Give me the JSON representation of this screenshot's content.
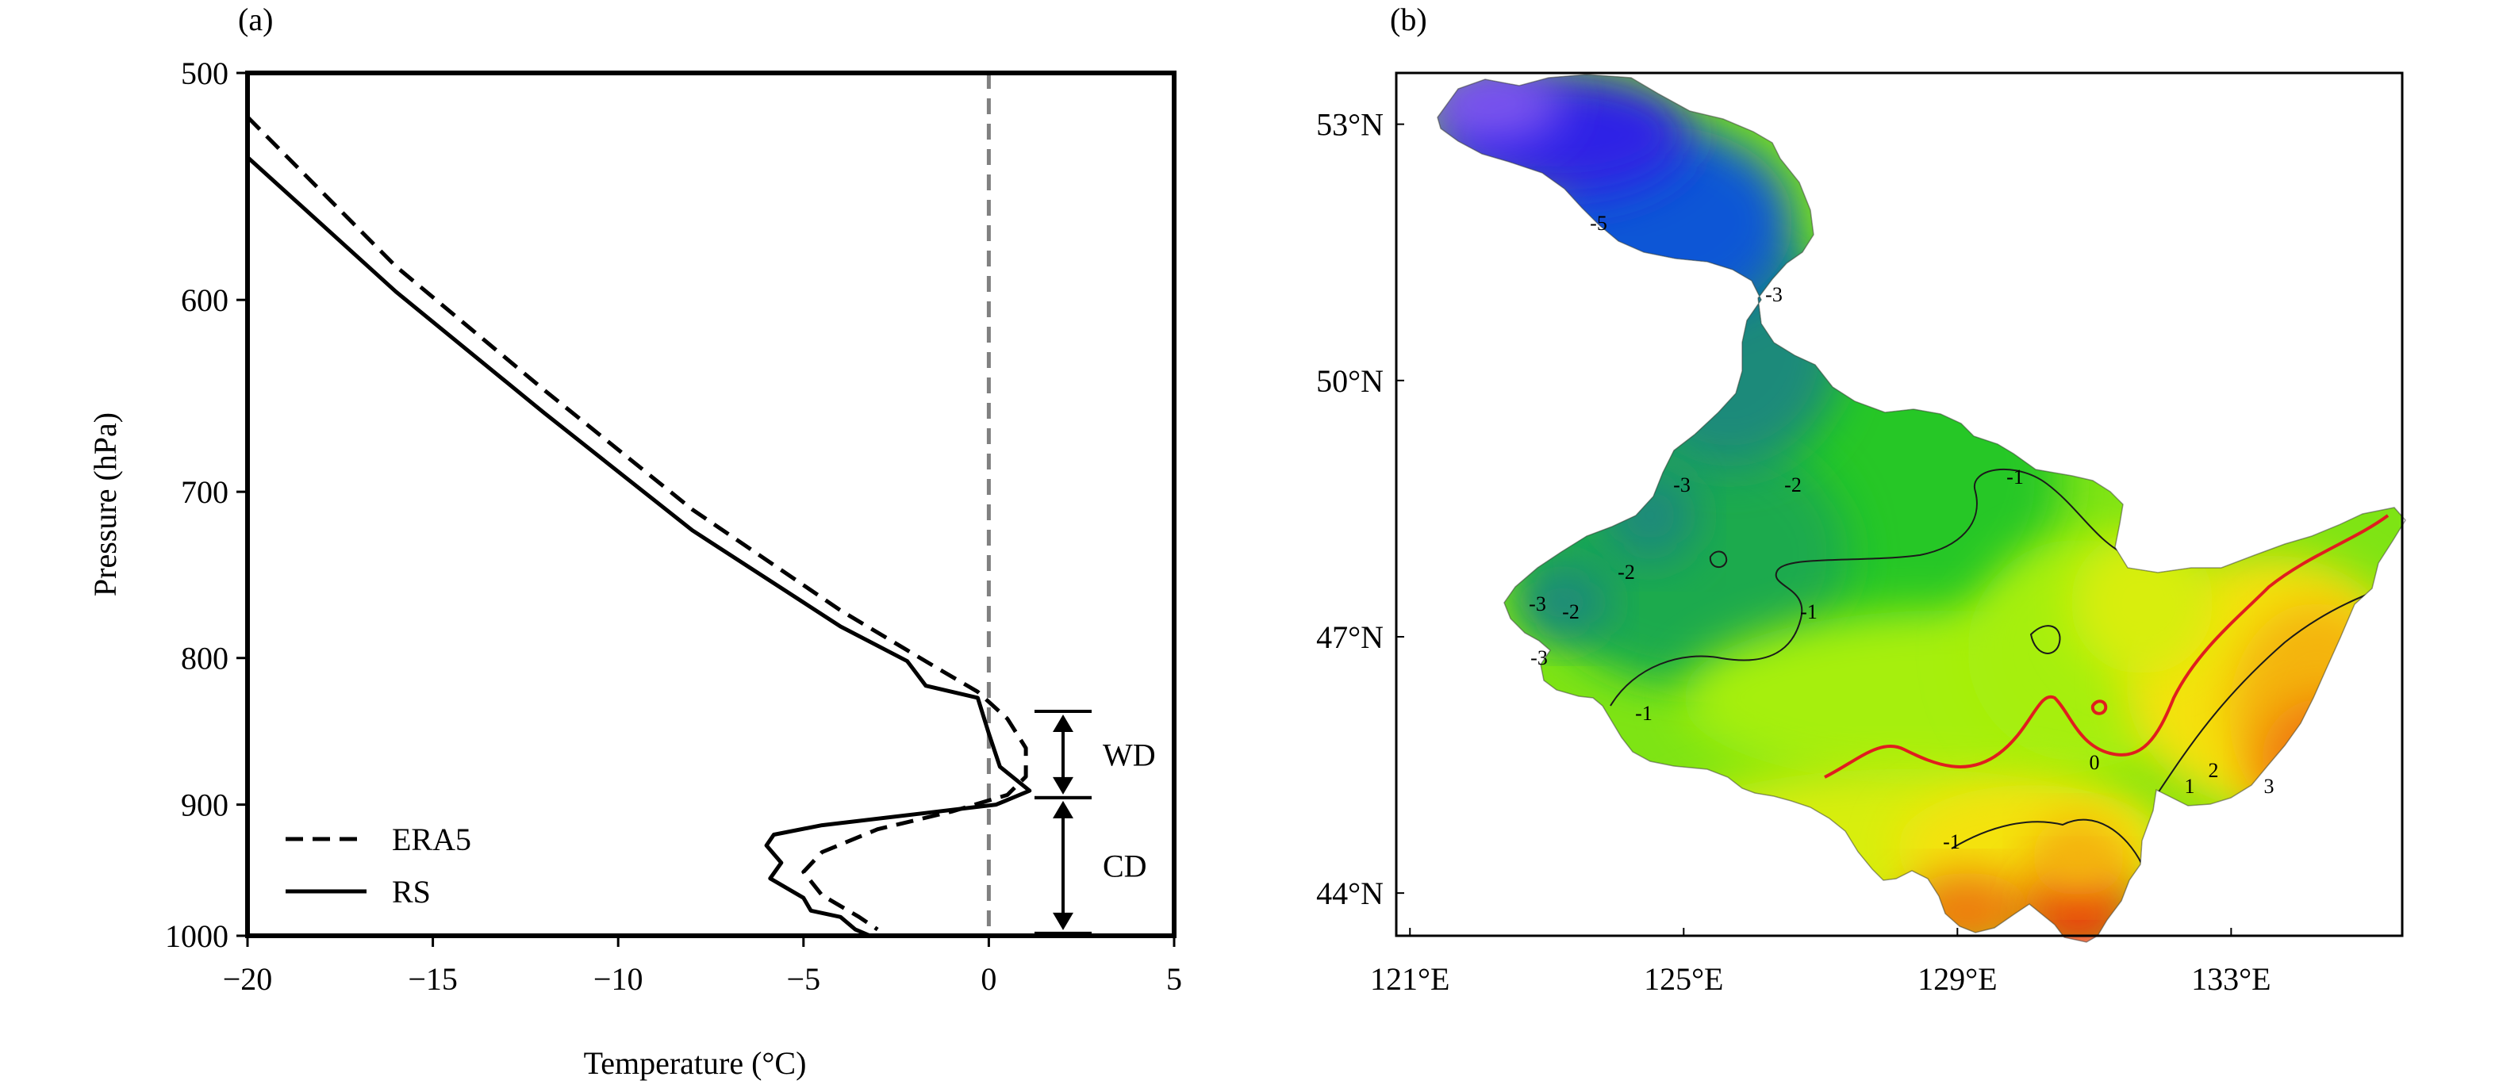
{
  "chart_data": [
    {
      "panel": "(a)",
      "type": "line",
      "xlabel": "Temperature (°C)",
      "ylabel": "Pressure (hPa)",
      "xlim": [
        -20,
        5
      ],
      "ylim": [
        1000,
        500
      ],
      "y_scale": "log",
      "x_ticks": [
        -20,
        -15,
        -10,
        -5,
        0,
        5
      ],
      "x_tick_labels": [
        "−20",
        "−15",
        "−10",
        "−5",
        "0",
        "5"
      ],
      "y_ticks": [
        500,
        600,
        700,
        800,
        900,
        1000
      ],
      "grid": false,
      "legend": "bottom-left",
      "series": [
        {
          "name": "ERA5",
          "style": "dashed",
          "points": [
            [
              -20,
              518
            ],
            [
              -16,
              584
            ],
            [
              -12,
              645
            ],
            [
              -8,
              710
            ],
            [
              -4,
              770
            ],
            [
              -1.5,
              805
            ],
            [
              -0.3,
              822
            ],
            [
              0.5,
              840
            ],
            [
              1,
              860
            ],
            [
              1,
              880
            ],
            [
              0.5,
              893
            ],
            [
              -1,
              905
            ],
            [
              -3,
              918
            ],
            [
              -4.5,
              935
            ],
            [
              -5,
              950
            ],
            [
              -4.5,
              968
            ],
            [
              -3.5,
              985
            ],
            [
              -3,
              995
            ]
          ]
        },
        {
          "name": "RS",
          "style": "solid",
          "points": [
            [
              -20,
              535
            ],
            [
              -16,
              596
            ],
            [
              -12,
              657
            ],
            [
              -8,
              722
            ],
            [
              -4,
              780
            ],
            [
              -2.2,
              802
            ],
            [
              -1.7,
              818
            ],
            [
              -0.3,
              826
            ],
            [
              0,
              850
            ],
            [
              0.3,
              873
            ],
            [
              1.1,
              890
            ],
            [
              0.2,
              900
            ],
            [
              -2,
              907
            ],
            [
              -4.5,
              915
            ],
            [
              -5.8,
              922
            ],
            [
              -6,
              930
            ],
            [
              -5.6,
              943
            ],
            [
              -5.9,
              955
            ],
            [
              -5,
              970
            ],
            [
              -4.8,
              980
            ],
            [
              -4,
              985
            ],
            [
              -3.6,
              995
            ],
            [
              -3.2,
              1000
            ]
          ]
        }
      ],
      "reference_line": {
        "x": 0,
        "style": "dashed",
        "color": "#808080"
      },
      "annotations": [
        {
          "label": "WD",
          "p_top": 835,
          "p_bottom": 895
        },
        {
          "label": "CD",
          "p_top": 895,
          "p_bottom": 998
        }
      ]
    },
    {
      "panel": "(b)",
      "type": "heatmap",
      "description_type": "filled contour map",
      "x_ticks": [
        121,
        125,
        129,
        133
      ],
      "x_tick_labels": [
        "121°E",
        "125°E",
        "129°E",
        "133°E"
      ],
      "y_ticks": [
        44,
        47,
        50,
        53
      ],
      "y_tick_labels": [
        "44°N",
        "47°N",
        "50°N",
        "53°N"
      ],
      "xlim": [
        120.8,
        135.5
      ],
      "ylim": [
        43.5,
        53.6
      ],
      "contour_labels": [
        "-5",
        "-3",
        "-3",
        "-3",
        "-3",
        "-2",
        "-2",
        "-2",
        "-1",
        "-1",
        "-1",
        "-1",
        "0",
        "1",
        "2",
        "3"
      ],
      "colormap": [
        "#7a52f0",
        "#2e22e6",
        "#0a56d6",
        "#1a8a7a",
        "#1faa4e",
        "#28c728",
        "#7ee414",
        "#a6ef0c",
        "#d8ee10",
        "#f4e20e",
        "#f4b40c",
        "#f07a0c",
        "#e84410"
      ],
      "zero_contour_color": "#e01e1e"
    }
  ]
}
